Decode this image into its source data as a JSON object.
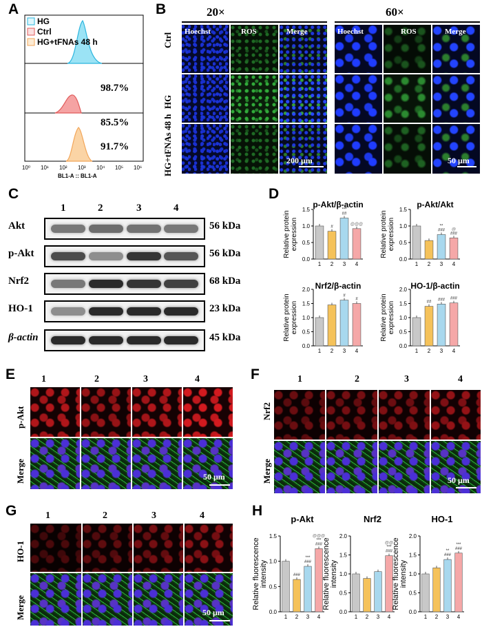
{
  "panels": {
    "A": "A",
    "B": "B",
    "C": "C",
    "D": "D",
    "E": "E",
    "F": "F",
    "G": "G",
    "H": "H"
  },
  "flow": {
    "legend": [
      "HG",
      "Ctrl",
      "HG+tFNAs 48 h"
    ],
    "colors": {
      "HG": "#5bc8e8",
      "Ctrl": "#e05a5a",
      "HG+tFNAs 48 h": "#f2a65a"
    },
    "percents": [
      "98.7%",
      "85.5%",
      "91.7%"
    ],
    "xticks": [
      "10⁰",
      "10¹",
      "10²",
      "10³",
      "10⁴",
      "10⁵",
      "10⁶"
    ],
    "xlabel": "BL1-A :: BL1-A"
  },
  "microB": {
    "mag": [
      "20×",
      "60×"
    ],
    "cols": [
      "Hoechst",
      "ROS",
      "Merge",
      "Hoechst",
      "ROS",
      "Merge"
    ],
    "rows": [
      "Ctrl",
      "HG",
      "HG+tFNAs 48 h"
    ],
    "scale": [
      "200 μm",
      "50 μm"
    ]
  },
  "westernC": {
    "lanes": [
      "1",
      "2",
      "3",
      "4"
    ],
    "proteins": [
      "Akt",
      "p-Akt",
      "Nrf2",
      "HO-1",
      "β-actin"
    ],
    "kda": [
      "56 kDa",
      "56 kDa",
      "68 kDa",
      "23 kDa",
      "45 kDa"
    ]
  },
  "chart_data": [
    {
      "type": "bar",
      "title": "p-Akt/β-actin",
      "ylabel": "Relative protein expression",
      "categories": [
        "1",
        "2",
        "3",
        "4"
      ],
      "values": [
        1.0,
        0.84,
        1.24,
        0.92
      ],
      "ylim": [
        0,
        1.5
      ],
      "yticks": [
        "0.0",
        "0.5",
        "1.0",
        "1.5"
      ],
      "annotations": [
        "",
        "#",
        "***\n##",
        "@@@"
      ],
      "colors": [
        "#c8c8c8",
        "#f5c25a",
        "#a8d8ee",
        "#f5a8a8"
      ]
    },
    {
      "type": "bar",
      "title": "p-Akt/Akt",
      "ylabel": "Relative protein expression",
      "categories": [
        "1",
        "2",
        "3",
        "4"
      ],
      "values": [
        1.0,
        0.56,
        0.74,
        0.64
      ],
      "ylim": [
        0,
        1.5
      ],
      "yticks": [
        "0.0",
        "0.5",
        "1.0",
        "1.5"
      ],
      "annotations": [
        "",
        "",
        "**\n###",
        "@\n###"
      ],
      "colors": [
        "#c8c8c8",
        "#f5c25a",
        "#a8d8ee",
        "#f5a8a8"
      ]
    },
    {
      "type": "bar",
      "title": "Nrf2/β-actin",
      "ylabel": "Relative protein expression",
      "categories": [
        "1",
        "2",
        "3",
        "4"
      ],
      "values": [
        1.0,
        1.45,
        1.62,
        1.5
      ],
      "ylim": [
        0,
        2.0
      ],
      "yticks": [
        "0.0",
        "0.5",
        "1.0",
        "1.5",
        "2.0"
      ],
      "annotations": [
        "",
        "",
        "#",
        "#"
      ],
      "colors": [
        "#c8c8c8",
        "#f5c25a",
        "#a8d8ee",
        "#f5a8a8"
      ]
    },
    {
      "type": "bar",
      "title": "HO-1/β-actin",
      "ylabel": "Relative protein expression",
      "categories": [
        "1",
        "2",
        "3",
        "4"
      ],
      "values": [
        1.0,
        1.4,
        1.48,
        1.52
      ],
      "ylim": [
        0,
        2.0
      ],
      "yticks": [
        "0.0",
        "0.5",
        "1.0",
        "1.5",
        "2.0"
      ],
      "annotations": [
        "",
        "##",
        "###",
        "###"
      ],
      "colors": [
        "#c8c8c8",
        "#f5c25a",
        "#a8d8ee",
        "#f5a8a8"
      ]
    },
    {
      "type": "bar",
      "title": "p-Akt",
      "ylabel": "Relative fluorescence intensity",
      "categories": [
        "1",
        "2",
        "3",
        "4"
      ],
      "values": [
        1.0,
        0.64,
        0.9,
        1.25
      ],
      "ylim": [
        0,
        1.5
      ],
      "yticks": [
        "0.0",
        "0.5",
        "1.0",
        "1.5"
      ],
      "annotations": [
        "",
        "###",
        "***\n###",
        "@@@\n***\n###"
      ],
      "colors": [
        "#c8c8c8",
        "#f5c25a",
        "#a8d8ee",
        "#f5a8a8"
      ]
    },
    {
      "type": "bar",
      "title": "Nrf2",
      "ylabel": "Relative fluorescence intensity",
      "categories": [
        "1",
        "2",
        "3",
        "4"
      ],
      "values": [
        1.0,
        0.88,
        1.06,
        1.48
      ],
      "ylim": [
        0,
        2.0
      ],
      "yticks": [
        "0.0",
        "0.5",
        "1.0",
        "1.5",
        "2.0"
      ],
      "annotations": [
        "",
        "",
        "",
        "@@\n***\n###"
      ],
      "colors": [
        "#c8c8c8",
        "#f5c25a",
        "#a8d8ee",
        "#f5a8a8"
      ]
    },
    {
      "type": "bar",
      "title": "HO-1",
      "ylabel": "Relative fluorescence intensity",
      "categories": [
        "1",
        "2",
        "3",
        "4"
      ],
      "values": [
        1.0,
        1.16,
        1.38,
        1.55
      ],
      "ylim": [
        0,
        2.0
      ],
      "yticks": [
        "0.0",
        "0.5",
        "1.0",
        "1.5",
        "2.0"
      ],
      "annotations": [
        "",
        "",
        "**\n###",
        "***\n###"
      ],
      "colors": [
        "#c8c8c8",
        "#f5c25a",
        "#a8d8ee",
        "#f5a8a8"
      ]
    }
  ],
  "panelE": {
    "lanes": [
      "1",
      "2",
      "3",
      "4"
    ],
    "rows": [
      "p-Akt",
      "Merge"
    ],
    "scale": "50 μm"
  },
  "panelF": {
    "lanes": [
      "1",
      "2",
      "3",
      "4"
    ],
    "rows": [
      "Nrf2",
      "Merge"
    ],
    "scale": "50 μm"
  },
  "panelG": {
    "lanes": [
      "1",
      "2",
      "3",
      "4"
    ],
    "rows": [
      "HO-1",
      "Merge"
    ],
    "scale": "50 μm"
  }
}
